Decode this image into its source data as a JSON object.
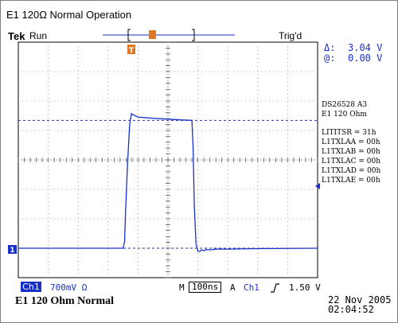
{
  "figure_title": "E1 120Ω Normal Operation",
  "scope": {
    "brand": "Tek",
    "run_status": "Run",
    "trigger_status": "Trig'd",
    "trigger_marker_symbol": "T"
  },
  "cursors": {
    "delta_label": "Δ:",
    "delta_value": "3.04 V",
    "at_label": "@:",
    "at_value": "0.00 V"
  },
  "side_info": [
    "DS26528 A3",
    "E1 120 Ohm",
    "",
    "LITITSR = 31h",
    "L1TXLAA = 00h",
    "L1TXLAB = 00h",
    "L1TXLAC = 00h",
    "L1TXLAD = 00h",
    "L1TXLAE = 00h"
  ],
  "channel": {
    "badge": "Ch1",
    "scale": "700mV Ω",
    "ground_marker": "1",
    "color": "#1830c8"
  },
  "timebase": {
    "m_label": "M",
    "value": "100ns",
    "a_label": "A",
    "trigger_source": "Ch1",
    "trigger_slope_icon": "rising-edge-icon",
    "trigger_level": "1.50 V"
  },
  "caption": "E1 120 Ohm Normal",
  "date": "22 Nov 2005",
  "time": "02:04:52",
  "chart_data": {
    "type": "line",
    "title": "",
    "xlabel": "",
    "ylabel": "",
    "xlim": [
      0,
      1000
    ],
    "ylim": [
      -0.7,
      4.9
    ],
    "grid": true,
    "x_units": "ns (100 ns/div)",
    "y_units": "V (0.7 V/div)",
    "series": [
      {
        "x": [
          0,
          350,
          355,
          358,
          365,
          372,
          378,
          384,
          400,
          450,
          550,
          580,
          584,
          588,
          594,
          600,
          606,
          612,
          620,
          628,
          640,
          660,
          700,
          800,
          1000
        ],
        "y": [
          0,
          0,
          0.15,
          0.8,
          2.0,
          2.95,
          3.2,
          3.17,
          3.12,
          3.09,
          3.05,
          3.04,
          2.4,
          1.0,
          0.1,
          -0.07,
          -0.08,
          -0.04,
          -0.06,
          -0.03,
          -0.04,
          -0.02,
          -0.02,
          -0.01,
          0
        ]
      }
    ],
    "cursor_levels": [
      3.04,
      0.0
    ]
  }
}
